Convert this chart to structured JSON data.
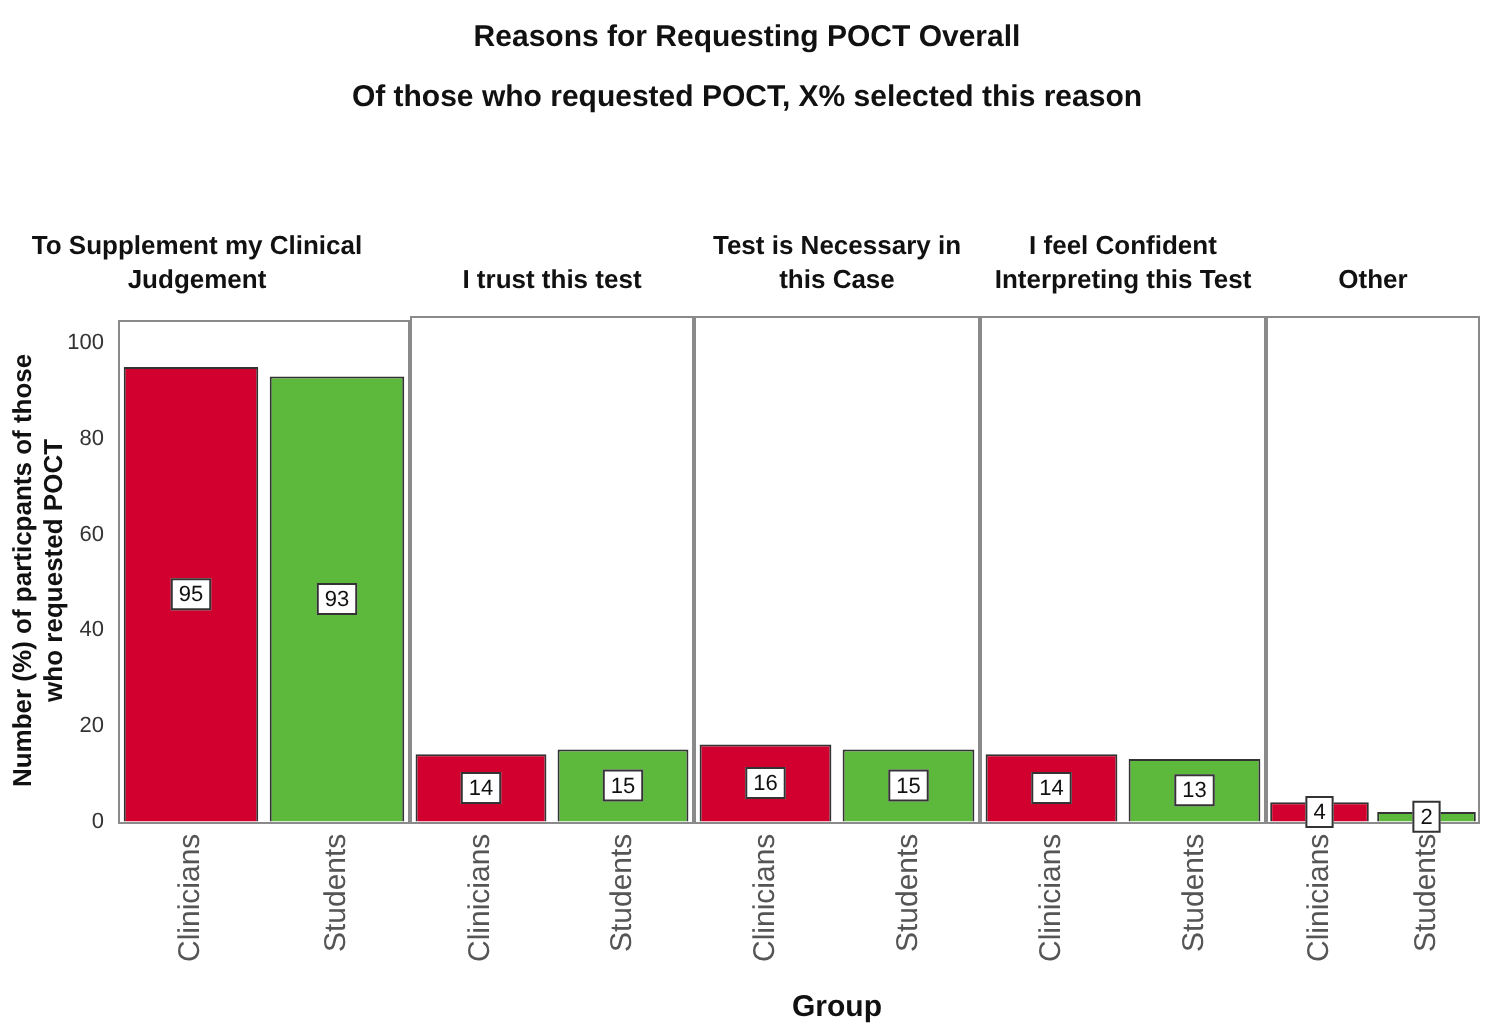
{
  "chart_data": [
    {
      "type": "other",
      "title": "Reasons for Requesting POCT Overall",
      "subtitle": "Of those who requested POCT, X% selected this reason"
    },
    {
      "type": "bar",
      "title": "To Supplement my Clinical Judgement",
      "categories": [
        "Clinicians",
        "Students"
      ],
      "values": [
        95,
        93
      ],
      "colors": [
        "#d2002e",
        "#5cb93c"
      ],
      "ylim": [
        0,
        105
      ],
      "yticks": [
        0,
        20,
        40,
        60,
        80,
        100
      ],
      "ylabel": "Number (%) of particpants of those who requested POCT",
      "data_labels": true,
      "grid": false
    },
    {
      "type": "bar",
      "title": "I trust this test",
      "categories": [
        "Clinicians",
        "Students"
      ],
      "values": [
        14,
        15
      ],
      "colors": [
        "#d2002e",
        "#5cb93c"
      ],
      "ylim": [
        0,
        105
      ],
      "yticks": [
        0,
        20,
        40,
        60,
        80,
        100
      ],
      "data_labels": true,
      "grid": false,
      "tick_labels": "x"
    },
    {
      "type": "bar",
      "title": "Test is Necessary in this Case",
      "categories": [
        "Clinicians",
        "Students"
      ],
      "values": [
        16,
        15
      ],
      "colors": [
        "#d2002e",
        "#5cb93c"
      ],
      "ylim": [
        0,
        105
      ],
      "yticks": [
        0,
        20,
        40,
        60,
        80,
        100
      ],
      "xlabel": "Group",
      "data_labels": true,
      "grid": false,
      "tick_labels": "x"
    },
    {
      "type": "bar",
      "title": "I feel Confident Interpreting this Test",
      "categories": [
        "Clinicians",
        "Students"
      ],
      "values": [
        14,
        13
      ],
      "colors": [
        "#d2002e",
        "#5cb93c"
      ],
      "ylim": [
        0,
        105
      ],
      "yticks": [
        0,
        20,
        40,
        60,
        80,
        100
      ],
      "data_labels": true,
      "grid": false,
      "tick_labels": "x"
    },
    {
      "type": "bar",
      "title": "Other",
      "categories": [
        "Clinicians",
        "Students"
      ],
      "values": [
        4,
        2
      ],
      "colors": [
        "#d2002e",
        "#5cb93c"
      ],
      "ylim": [
        0,
        105
      ],
      "yticks": [
        0,
        20,
        40,
        60,
        80,
        100
      ],
      "data_labels": true,
      "grid": false,
      "tick_labels": "x"
    }
  ]
}
